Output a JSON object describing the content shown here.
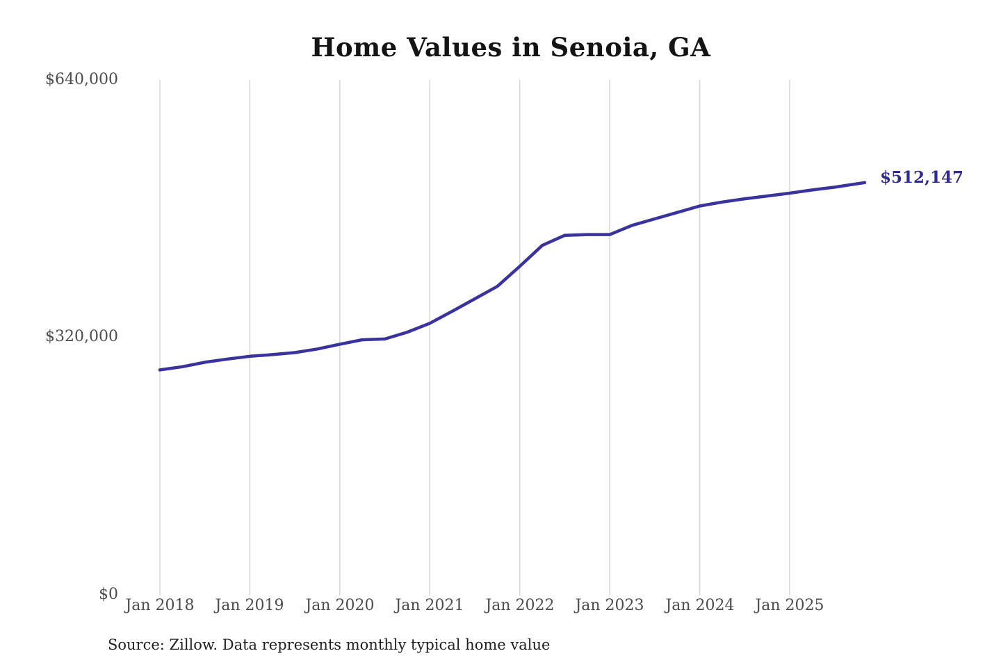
{
  "title": "Home Values in Senoia, GA",
  "annotation": {
    "end_value_label": "$512,147"
  },
  "source_note": "Source: Zillow. Data represents monthly typical home value",
  "y_axis": {
    "tick_top": "$640,000",
    "tick_mid": "$320,000",
    "tick_bottom": "$0"
  },
  "x_axis": {
    "ticks": [
      "Jan 2018",
      "Jan 2019",
      "Jan 2020",
      "Jan 2021",
      "Jan 2022",
      "Jan 2023",
      "Jan 2024",
      "Jan 2025"
    ]
  },
  "colors": {
    "background": "#ffffff",
    "line": "#3a339e",
    "end_label": "#2f2b8f",
    "grid": "#d5d5d5",
    "axis_text": "#4c4c4c",
    "title_text": "#141414",
    "source_text": "#1f1f1f"
  },
  "chart_data": {
    "type": "line",
    "title": "Home Values in Senoia, GA",
    "series_name": "Monthly typical home value (Zillow)",
    "x": [
      "2018-01",
      "2018-04",
      "2018-07",
      "2018-10",
      "2019-01",
      "2019-04",
      "2019-07",
      "2019-10",
      "2020-01",
      "2020-04",
      "2020-07",
      "2020-10",
      "2021-01",
      "2021-04",
      "2021-07",
      "2021-10",
      "2022-01",
      "2022-04",
      "2022-07",
      "2022-10",
      "2023-01",
      "2023-04",
      "2023-07",
      "2023-10",
      "2024-01",
      "2024-04",
      "2024-07",
      "2024-10",
      "2025-01",
      "2025-04",
      "2025-07",
      "2025-11"
    ],
    "values": [
      279000,
      283000,
      288500,
      292500,
      296000,
      298000,
      300500,
      305000,
      311000,
      316500,
      317500,
      326000,
      337000,
      352000,
      367500,
      383000,
      408000,
      434000,
      446500,
      447500,
      447500,
      459000,
      467000,
      475000,
      483000,
      488000,
      492000,
      495500,
      499000,
      503000,
      506500,
      512147
    ],
    "end_annotation": {
      "text": "$512,147",
      "value": 512147
    },
    "xlabel": "",
    "ylabel": "",
    "x_tick_labels": [
      "Jan 2018",
      "Jan 2019",
      "Jan 2020",
      "Jan 2021",
      "Jan 2022",
      "Jan 2023",
      "Jan 2024",
      "Jan 2025"
    ],
    "y_tick_labels": [
      "$0",
      "$320,000",
      "$640,000"
    ],
    "ylim": [
      0,
      640000
    ],
    "grid": "vertical-only",
    "legend": "none"
  }
}
